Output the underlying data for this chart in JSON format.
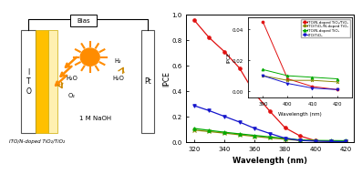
{
  "left_panel": {
    "ito_label": "I\nT\nO",
    "electrode_label": "ITO/N-doped TiO₂/TiO₂",
    "pt_label": "Pt",
    "electrolyte": "1 M NaOH",
    "bias_label": "Bias",
    "h2_label": "H₂",
    "h2o_label1": "H₂O",
    "o2_label": "O₂",
    "h2o_label2": "H₂O"
  },
  "right_panel": {
    "xlabel": "Wavelength (nm)",
    "ylabel": "IPCE",
    "xlim": [
      315,
      425
    ],
    "ylim": [
      0,
      1.0
    ],
    "xticks": [
      320,
      340,
      360,
      380,
      400,
      420
    ],
    "yticks": [
      0.0,
      0.2,
      0.4,
      0.6,
      0.8,
      1.0
    ],
    "series": {
      "red": {
        "label": "ITO/N-doped TiO₂/TiO₂",
        "color": "#e01010",
        "marker": "o",
        "x": [
          320,
          330,
          340,
          350,
          360,
          370,
          380,
          390,
          400,
          410,
          420
        ],
        "y": [
          0.96,
          0.82,
          0.71,
          0.58,
          0.38,
          0.24,
          0.11,
          0.045,
          0.008,
          0.003,
          0.001
        ]
      },
      "olive": {
        "label": "ITO/TiO₂/N-doped TiO₂",
        "color": "#888800",
        "marker": "x",
        "x": [
          320,
          330,
          340,
          350,
          360,
          370,
          380,
          390,
          400,
          410,
          420
        ],
        "y": [
          0.092,
          0.08,
          0.068,
          0.055,
          0.042,
          0.03,
          0.02,
          0.01,
          0.007,
          0.007,
          0.006
        ]
      },
      "green": {
        "label": "ITO/N-doped TiO₂",
        "color": "#00aa00",
        "marker": "^",
        "x": [
          320,
          330,
          340,
          350,
          360,
          370,
          380,
          390,
          400,
          410,
          420
        ],
        "y": [
          0.105,
          0.09,
          0.075,
          0.062,
          0.05,
          0.038,
          0.027,
          0.014,
          0.01,
          0.009,
          0.008
        ]
      },
      "blue": {
        "label": "ITO/TiO₂",
        "color": "#1515cc",
        "marker": "v",
        "x": [
          320,
          330,
          340,
          350,
          360,
          370,
          380,
          390,
          400,
          410,
          420
        ],
        "y": [
          0.285,
          0.245,
          0.2,
          0.155,
          0.105,
          0.065,
          0.028,
          0.01,
          0.005,
          0.002,
          0.001
        ]
      }
    },
    "inset": {
      "xlim": [
        384,
        426
      ],
      "ylim": [
        -0.004,
        0.048
      ],
      "xticks": [
        390,
        400,
        410,
        420
      ],
      "yticks": [
        0.0,
        0.02,
        0.04
      ],
      "xlabel": "Wavelength (nm)",
      "ylabel": "IPCE"
    }
  }
}
